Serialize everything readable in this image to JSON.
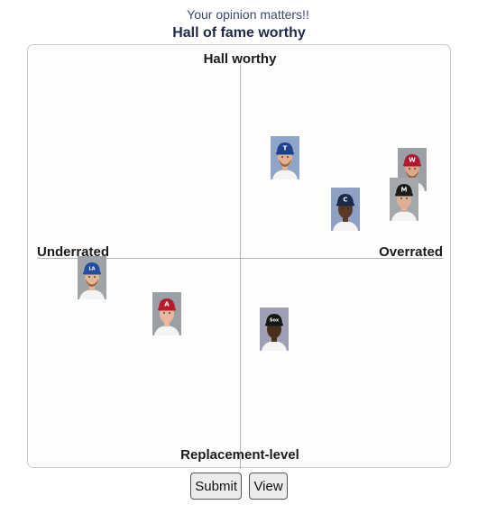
{
  "header": {
    "subtitle": "Your opinion matters!!",
    "title": "Hall of fame worthy"
  },
  "board": {
    "label_top": "Hall worthy",
    "label_bottom": "Replacement-level",
    "label_left": "Underrated",
    "label_right": "Overrated"
  },
  "players": [
    {
      "team_icon": "rangers-cap-icon",
      "cap_color": "#1f3f8f",
      "logo": "T",
      "bg": "#8ea4c8",
      "skin": "#e2b48e",
      "beard": true
    },
    {
      "team_icon": "nationals-cap-icon",
      "cap_color": "#b0182b",
      "logo": "W",
      "bg": "#9aa0a6",
      "skin": "#d9a989",
      "beard": true
    },
    {
      "team_icon": "marlins-cap-icon",
      "cap_color": "#1b1b1b",
      "logo": "M",
      "bg": "#a4a7ab",
      "skin": "#e0b095",
      "beard": false
    },
    {
      "team_icon": "indians-cap-icon",
      "cap_color": "#1a2a4a",
      "logo": "C",
      "bg": "#8fa0c4",
      "skin": "#5a3a24",
      "beard": false
    },
    {
      "team_icon": "dodgers-cap-icon",
      "cap_color": "#1f4fa0",
      "logo": "LA",
      "bg": "#9ea3a8",
      "skin": "#e3b696",
      "beard": true
    },
    {
      "team_icon": "angels-cap-icon",
      "cap_color": "#b81c2c",
      "logo": "A",
      "bg": "#9aa0a6",
      "skin": "#eab99c",
      "beard": false
    },
    {
      "team_icon": "white-sox-cap-icon",
      "cap_color": "#151515",
      "logo": "Sox",
      "bg": "#9fa0b4",
      "skin": "#4a2e1e",
      "beard": false
    }
  ],
  "buttons": {
    "submit": "Submit",
    "view": "View"
  }
}
